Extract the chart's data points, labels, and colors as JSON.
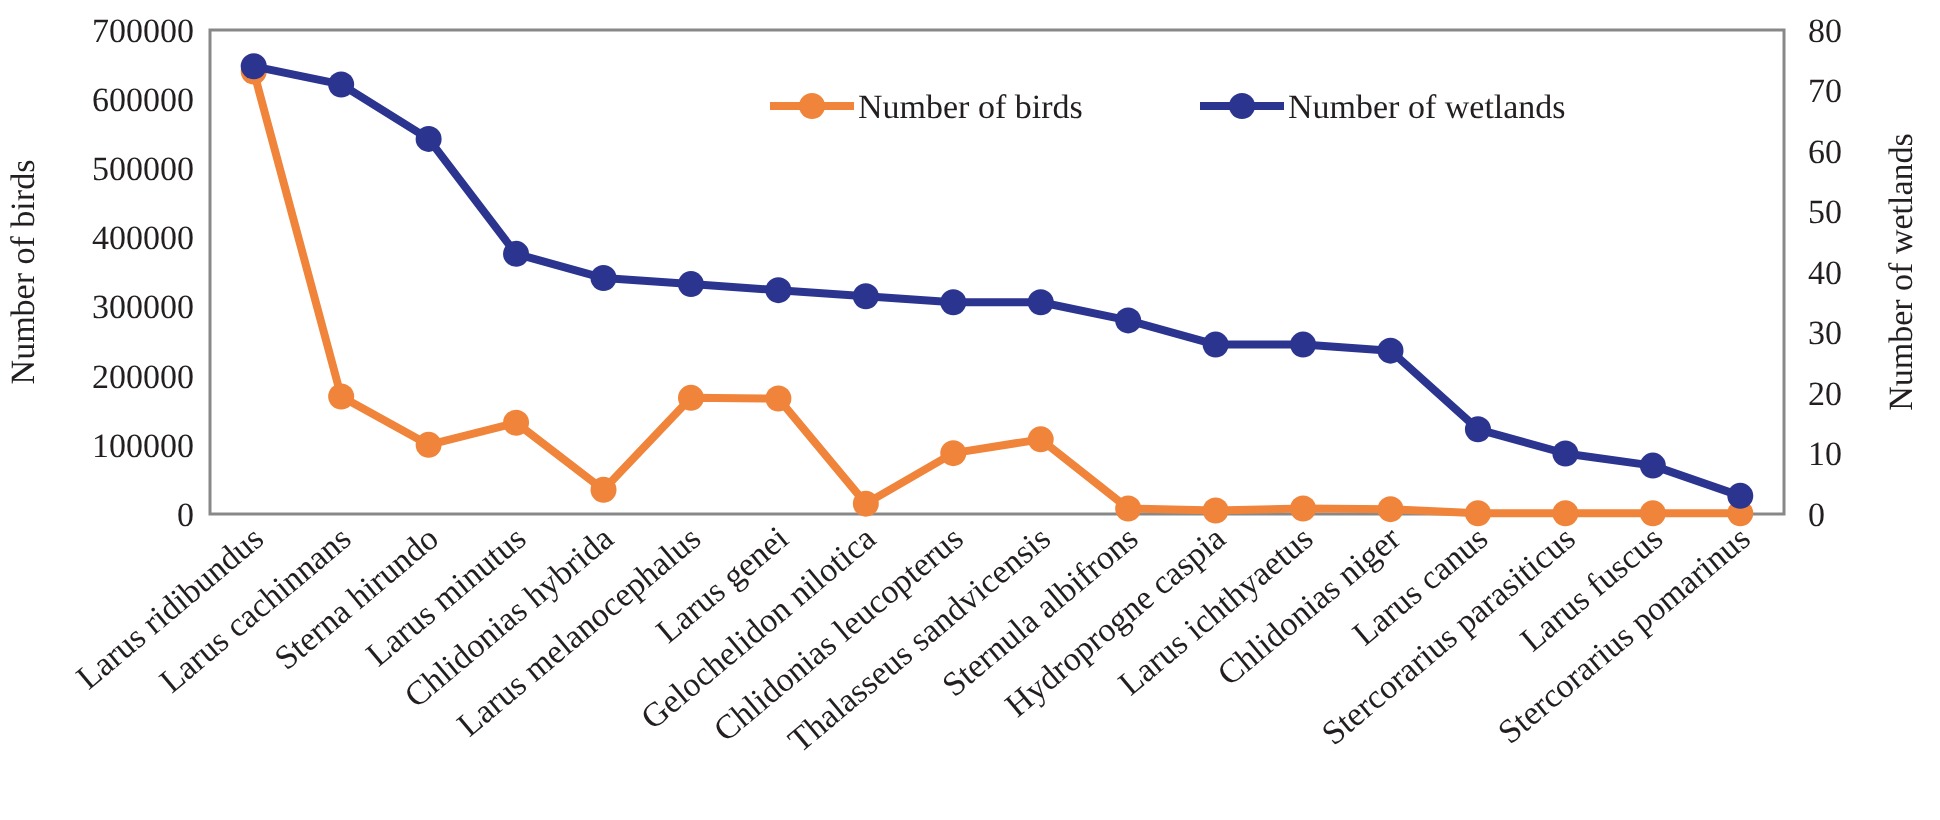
{
  "chart_data": {
    "type": "line",
    "xlabel": null,
    "ylabel": "Number of birds",
    "y2label": "Number of wetlands",
    "categories": [
      "Larus ridibundus",
      "Larus cachinnans",
      "Sterna hirundo",
      "Larus minutus",
      "Chlidonias hybrida",
      "Larus melanocephalus",
      "Larus genei",
      "Gelochelidon nilotica",
      "Chlidonias leucopterus",
      "Thalasseus sandvicensis",
      "Sternula albifrons",
      "Hydroprogne caspia",
      "Larus ichthyaetus",
      "Chlidonias niger",
      "Larus canus",
      "Stercorarius parasiticus",
      "Larus fuscus",
      "Stercorarius pomarinus"
    ],
    "series": [
      {
        "name": "Number of birds",
        "color": "#f0843a",
        "values": [
          640000,
          170000,
          100000,
          132000,
          35000,
          168000,
          167000,
          15000,
          88000,
          108000,
          8000,
          5000,
          8000,
          7000,
          1000,
          1000,
          1000,
          1000
        ]
      },
      {
        "name": "Number of wetlands",
        "color": "#2b3590",
        "axis": "y2",
        "values": [
          74,
          71,
          62,
          43,
          39,
          38,
          37,
          36,
          35,
          35,
          32,
          28,
          28,
          27,
          14,
          10,
          8,
          3
        ]
      }
    ],
    "ylim": [
      0,
      700000
    ],
    "yticks": [
      0,
      100000,
      200000,
      300000,
      400000,
      500000,
      600000,
      700000
    ],
    "y2lim": [
      0,
      80
    ],
    "y2ticks": [
      0,
      10,
      20,
      30,
      40,
      50,
      60,
      70,
      80
    ],
    "legend": "top right",
    "marker": "circle",
    "grid": false
  }
}
